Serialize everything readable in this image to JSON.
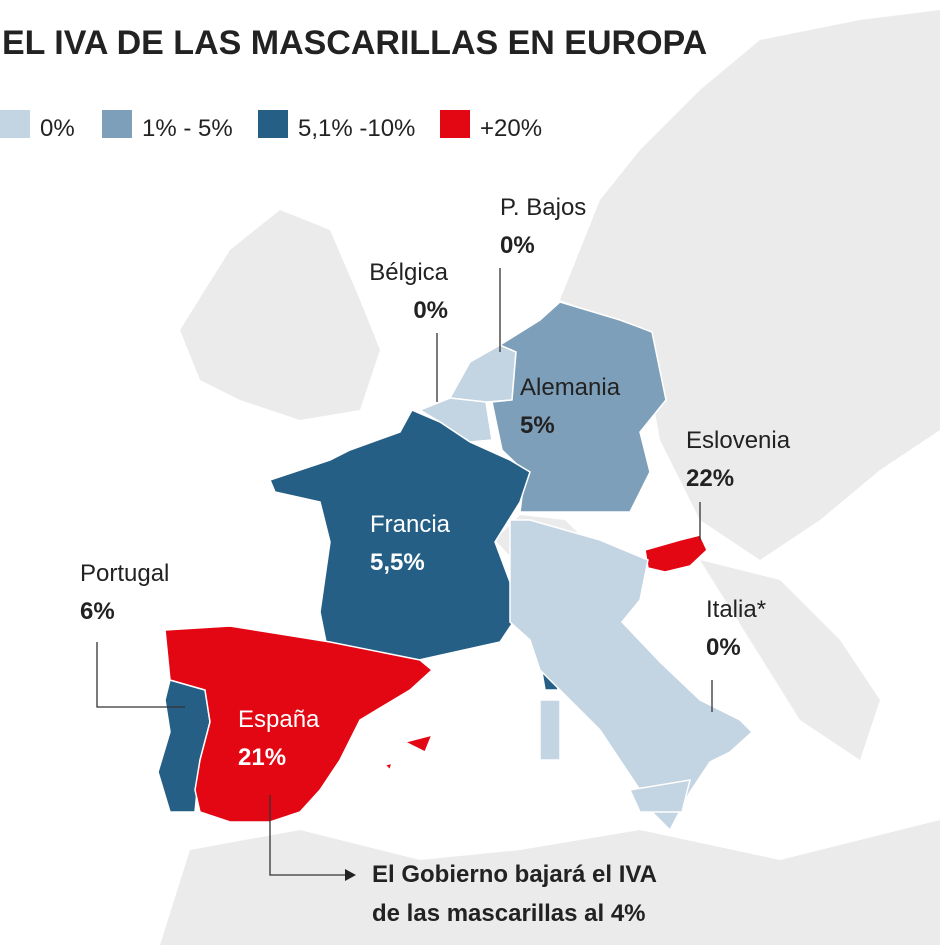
{
  "title": "EL IVA DE LAS MASCARILLAS EN EUROPA",
  "legend": [
    {
      "label": "0%",
      "color": "#c3d4e2"
    },
    {
      "label": "1% - 5%",
      "color": "#7e9fb9"
    },
    {
      "label": "5,1% -10%",
      "color": "#255f85"
    },
    {
      "label": "+20%",
      "color": "#e30613"
    }
  ],
  "countries": [
    {
      "name": "P. Bajos",
      "vat": "0%",
      "color": "#c3d4e2"
    },
    {
      "name": "Bélgica",
      "vat": "0%",
      "color": "#c3d4e2"
    },
    {
      "name": "Alemania",
      "vat": "5%",
      "color": "#7e9fb9"
    },
    {
      "name": "Eslovenia",
      "vat": "22%",
      "color": "#e30613"
    },
    {
      "name": "Francia",
      "vat": "5,5%",
      "color": "#255f85"
    },
    {
      "name": "Portugal",
      "vat": "6%",
      "color": "#255f85"
    },
    {
      "name": "Italia*",
      "vat": "0%",
      "color": "#c3d4e2"
    },
    {
      "name": "España",
      "vat": "21%",
      "color": "#e30613"
    }
  ],
  "note": [
    "El Gobierno bajará el IVA",
    "de las mascarillas al 4%"
  ]
}
